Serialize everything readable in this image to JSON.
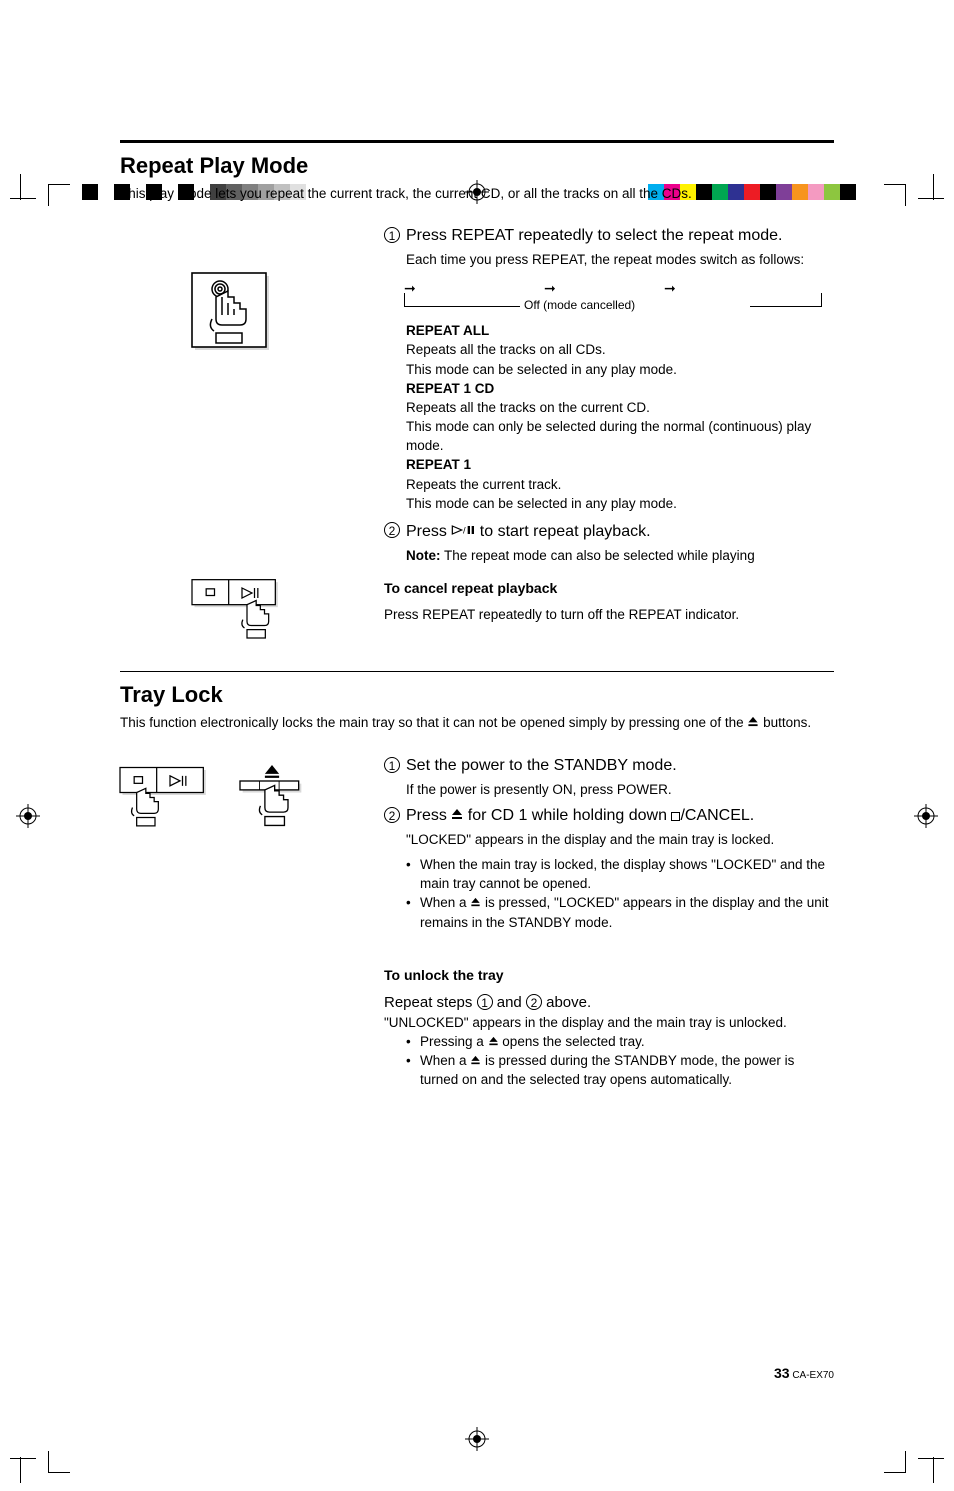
{
  "printmarks": {
    "left_swatches": [
      "#000000",
      "#000000",
      "#333333",
      "#333333",
      "#666666",
      "#808080",
      "#999999",
      "#b3b3b3",
      "#cccccc",
      "#e0e0e0",
      "#f0f0f0",
      "#ffffff",
      "#ffffff",
      "#ffffff"
    ],
    "left_pattern": [
      1,
      0,
      1,
      0,
      1,
      1,
      1,
      1,
      1,
      1,
      1,
      1,
      0,
      0
    ],
    "right_swatches": [
      "#00aeef",
      "#ec008c",
      "#fff200",
      "#000000",
      "#00a651",
      "#2e3192",
      "#ed1c24",
      "#000000",
      "#7f3f98",
      "#f7941e",
      "#f49ac1",
      "#8dc63f",
      "#000000",
      "#ffffff"
    ]
  },
  "page_number": "33",
  "model": "CA-EX70",
  "section1": {
    "title": "Repeat Play Mode",
    "intro": "This play mode lets you repeat the current track, the current CD, or all the tracks on all the CDs.",
    "step1_main": "Press REPEAT repeatedly to select the repeat mode.",
    "step1_sub": "Each time you press REPEAT, the repeat modes switch as follows:",
    "flow_label": "Off (mode cancelled)",
    "mode1_title": "REPEAT ALL",
    "mode1_line1": "Repeats all the tracks on all CDs.",
    "mode1_line2": "This mode can be selected in any play mode.",
    "mode2_title": "REPEAT 1 CD",
    "mode2_line1": "Repeats all the tracks on the current CD.",
    "mode2_line2": "This mode can only be selected during the normal (continuous) play mode.",
    "mode3_title": "REPEAT 1",
    "mode3_line1": "Repeats the current track.",
    "mode3_line2": "This mode can be selected in any play mode.",
    "step2_pre": "Press ",
    "step2_post": " to start repeat playback.",
    "step2_note_label": "Note:",
    "step2_note": " The repeat mode can also be selected while playing",
    "cancel_title": "To cancel repeat playback",
    "cancel_body": "Press REPEAT repeatedly to turn off the REPEAT indicator."
  },
  "section2": {
    "title": "Tray Lock",
    "intro_pre": "This function electronically locks the main tray so that it can not be opened simply by pressing one of the ",
    "intro_post": " buttons.",
    "step1_main": "Set the power to the STANDBY mode.",
    "step1_sub": "If the power is presently ON, press POWER.",
    "step2_pre": "Press ",
    "step2_mid": " for CD 1 while holding down ",
    "step2_post": "/CANCEL.",
    "step2_sub": "\"LOCKED\" appears in the display and the main tray is locked.",
    "step2_b1_pre": "When the main tray is locked, the display shows \"LOCKED\" and the main tray cannot be opened.",
    "step2_b2_pre": "When a ",
    "step2_b2_post": " is pressed, \"LOCKED\" appears in the display and the unit remains in the STANDBY mode.",
    "unlock_title": "To unlock the tray",
    "unlock_main_pre": "Repeat steps ",
    "unlock_main_mid": " and ",
    "unlock_main_post": " above.",
    "unlock_sub": "\"UNLOCKED\" appears in the display and the main tray is unlocked.",
    "unlock_b1_pre": "Pressing a ",
    "unlock_b1_post": " opens the selected tray.",
    "unlock_b2_pre": "When a ",
    "unlock_b2_post": " is pressed during the STANDBY mode, the power is turned on and the selected tray opens automatically."
  }
}
